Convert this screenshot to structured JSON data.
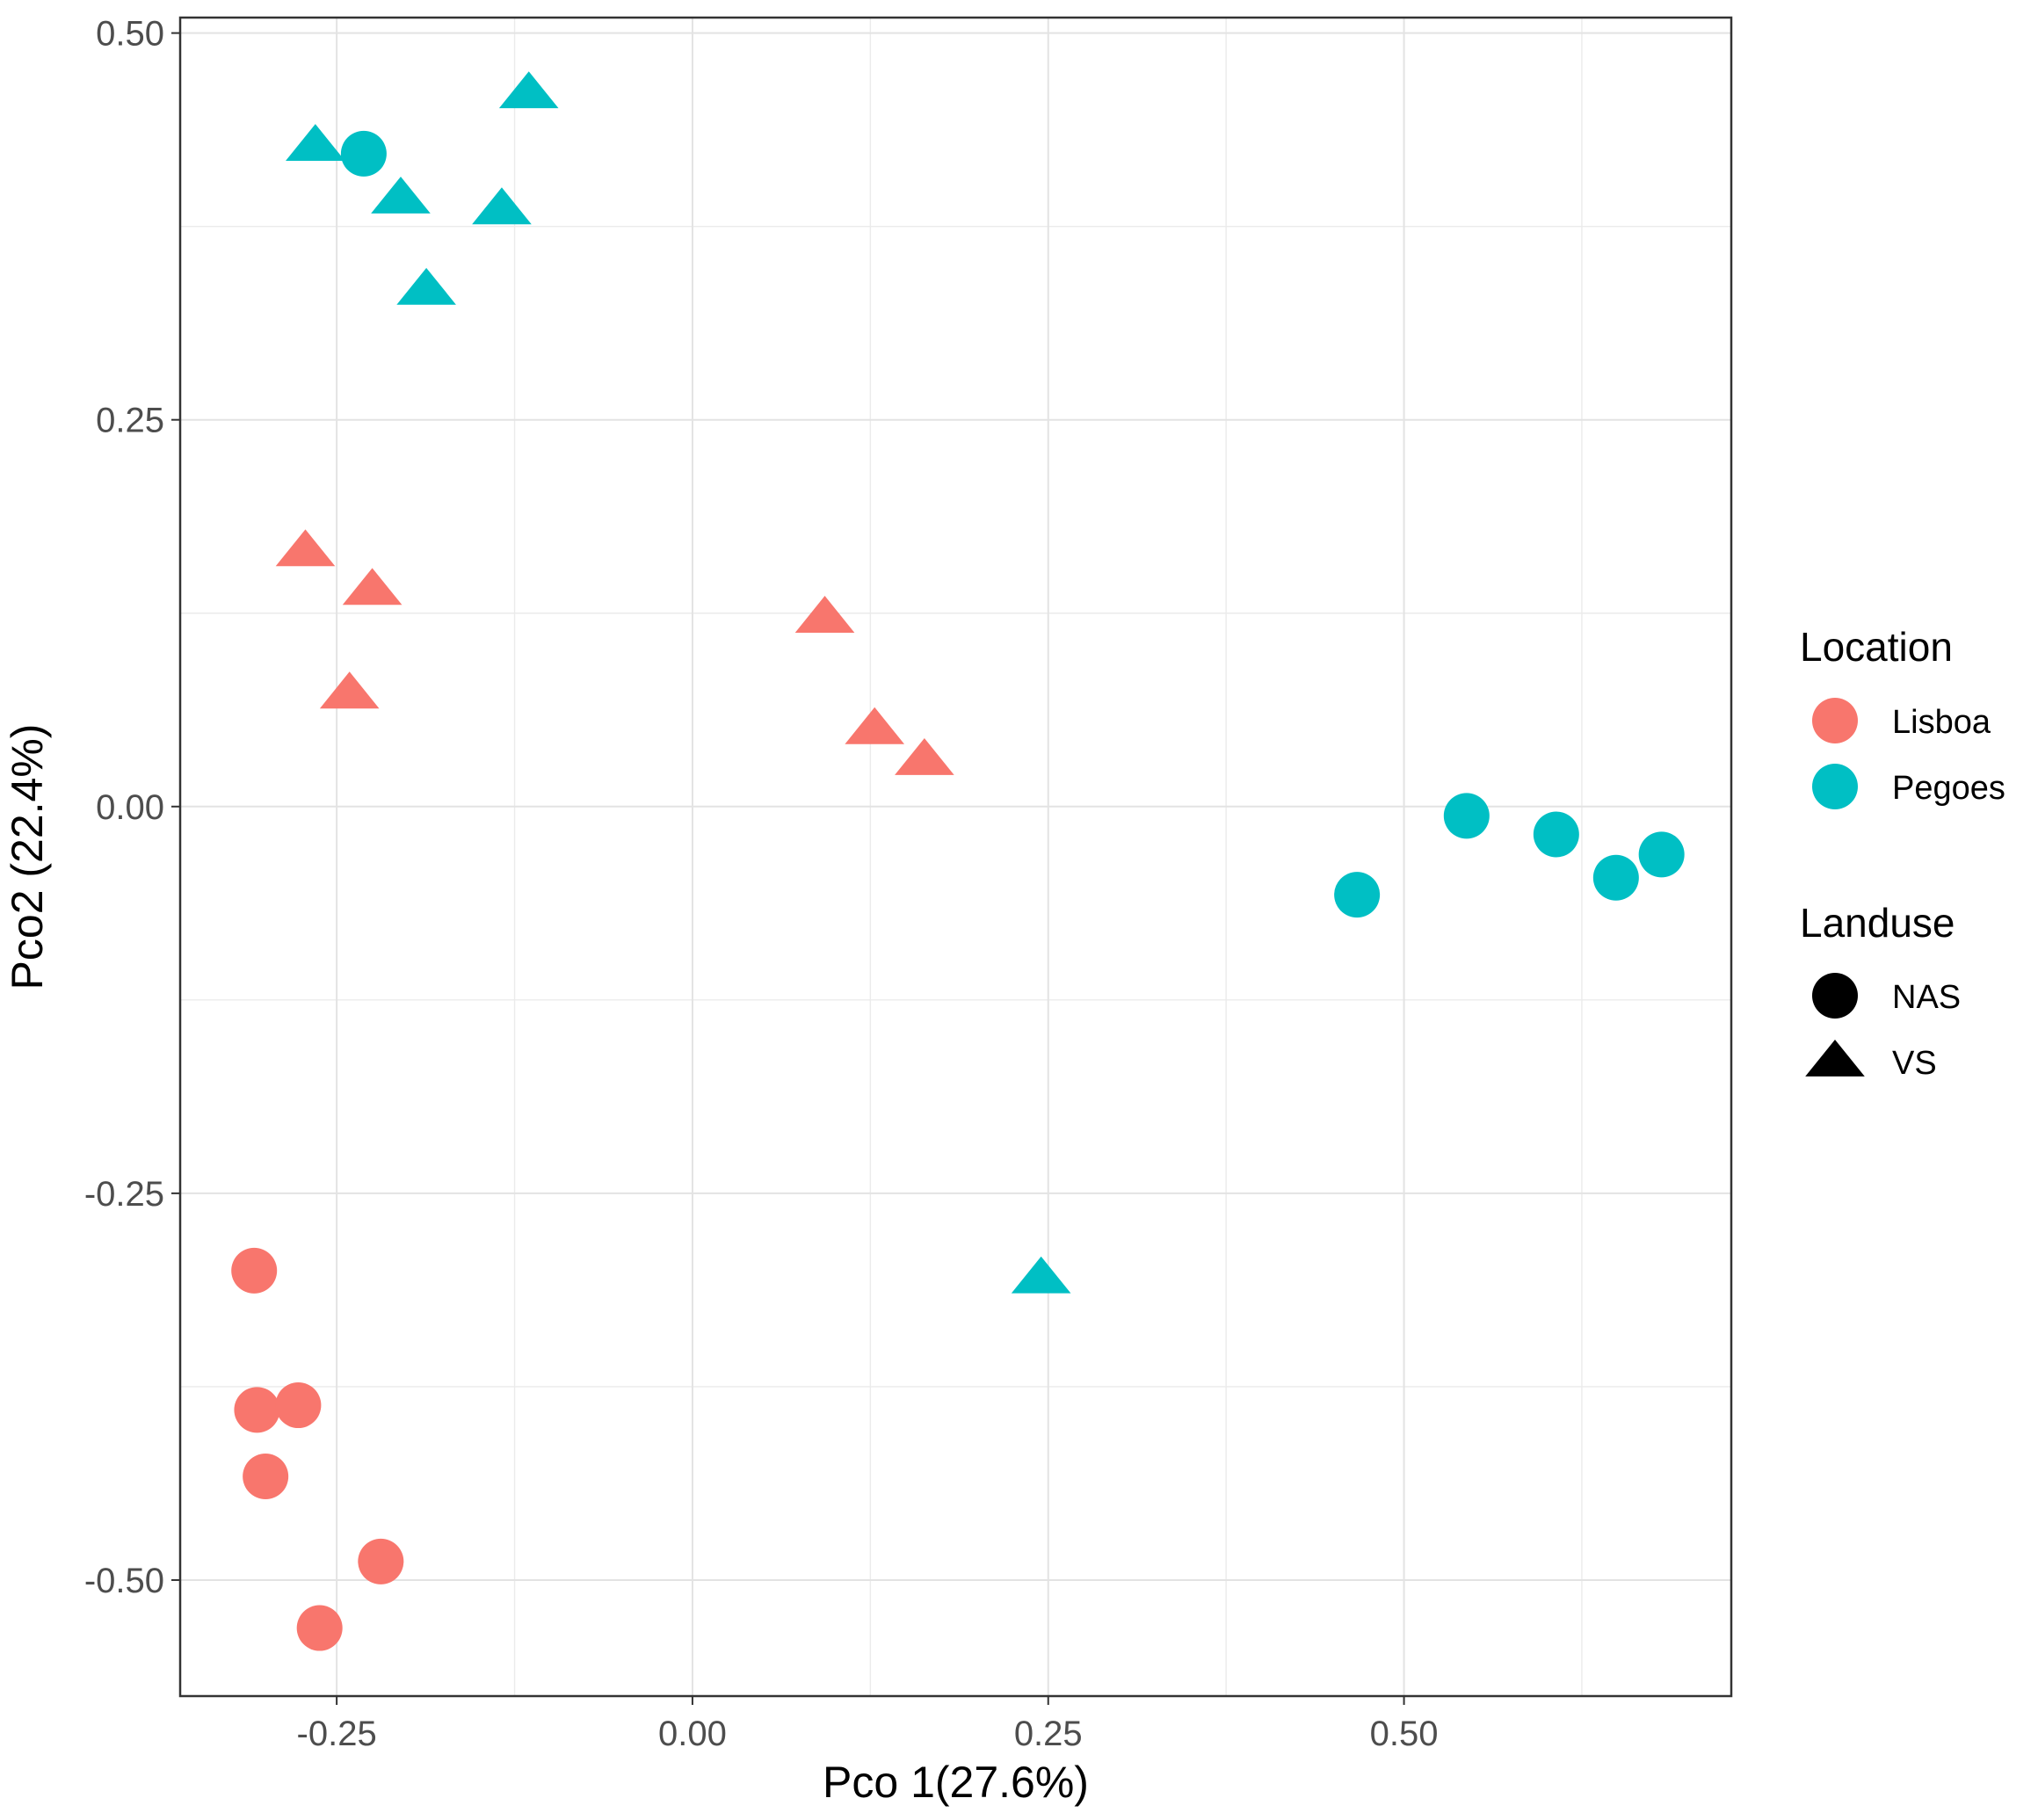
{
  "chart_data": {
    "type": "scatter",
    "title": "",
    "xlabel": "Pco 1(27.6%)",
    "ylabel": "Pco2 (22.4%)",
    "xlim": [
      -0.36,
      0.73
    ],
    "ylim": [
      -0.575,
      0.51
    ],
    "x_ticks": [
      -0.25,
      0.0,
      0.25,
      0.5
    ],
    "x_tick_labels": [
      "-0.25",
      "0.00",
      "0.25",
      "0.50"
    ],
    "y_ticks": [
      -0.5,
      -0.25,
      0.0,
      0.25,
      0.5
    ],
    "y_tick_labels": [
      "-0.50",
      "-0.25",
      "0.00",
      "0.25",
      "0.50"
    ],
    "grid": true,
    "legend_position": "right",
    "colors": {
      "Lisboa": "#F8766D",
      "Pegoes": "#00BFC4"
    },
    "legend": {
      "location_title": "Location",
      "location_items": [
        "Lisboa",
        "Pegoes"
      ],
      "landuse_title": "Landuse",
      "landuse_items": [
        {
          "label": "NAS",
          "shape": "circle"
        },
        {
          "label": "VS",
          "shape": "triangle"
        }
      ]
    },
    "series": [
      {
        "name": "Lisboa NAS",
        "location": "Lisboa",
        "landuse": "NAS",
        "shape": "circle",
        "points": [
          {
            "x": -0.308,
            "y": -0.3
          },
          {
            "x": -0.306,
            "y": -0.39
          },
          {
            "x": -0.277,
            "y": -0.387
          },
          {
            "x": -0.3,
            "y": -0.433
          },
          {
            "x": -0.219,
            "y": -0.488
          },
          {
            "x": -0.262,
            "y": -0.531
          }
        ]
      },
      {
        "name": "Lisboa VS",
        "location": "Lisboa",
        "landuse": "VS",
        "shape": "triangle",
        "points": [
          {
            "x": -0.272,
            "y": 0.165
          },
          {
            "x": -0.225,
            "y": 0.14
          },
          {
            "x": -0.241,
            "y": 0.073
          },
          {
            "x": 0.093,
            "y": 0.122
          },
          {
            "x": 0.128,
            "y": 0.05
          },
          {
            "x": 0.163,
            "y": 0.03
          }
        ]
      },
      {
        "name": "Pegoes NAS",
        "location": "Pegoes",
        "landuse": "NAS",
        "shape": "circle",
        "points": [
          {
            "x": -0.231,
            "y": 0.422
          },
          {
            "x": 0.467,
            "y": -0.057
          },
          {
            "x": 0.544,
            "y": -0.006
          },
          {
            "x": 0.607,
            "y": -0.018
          },
          {
            "x": 0.649,
            "y": -0.046
          },
          {
            "x": 0.681,
            "y": -0.031
          }
        ]
      },
      {
        "name": "Pegoes VS",
        "location": "Pegoes",
        "landuse": "VS",
        "shape": "triangle",
        "points": [
          {
            "x": -0.265,
            "y": 0.427
          },
          {
            "x": -0.115,
            "y": 0.461
          },
          {
            "x": -0.205,
            "y": 0.393
          },
          {
            "x": -0.134,
            "y": 0.386
          },
          {
            "x": -0.187,
            "y": 0.334
          },
          {
            "x": 0.245,
            "y": -0.305
          }
        ]
      }
    ]
  }
}
